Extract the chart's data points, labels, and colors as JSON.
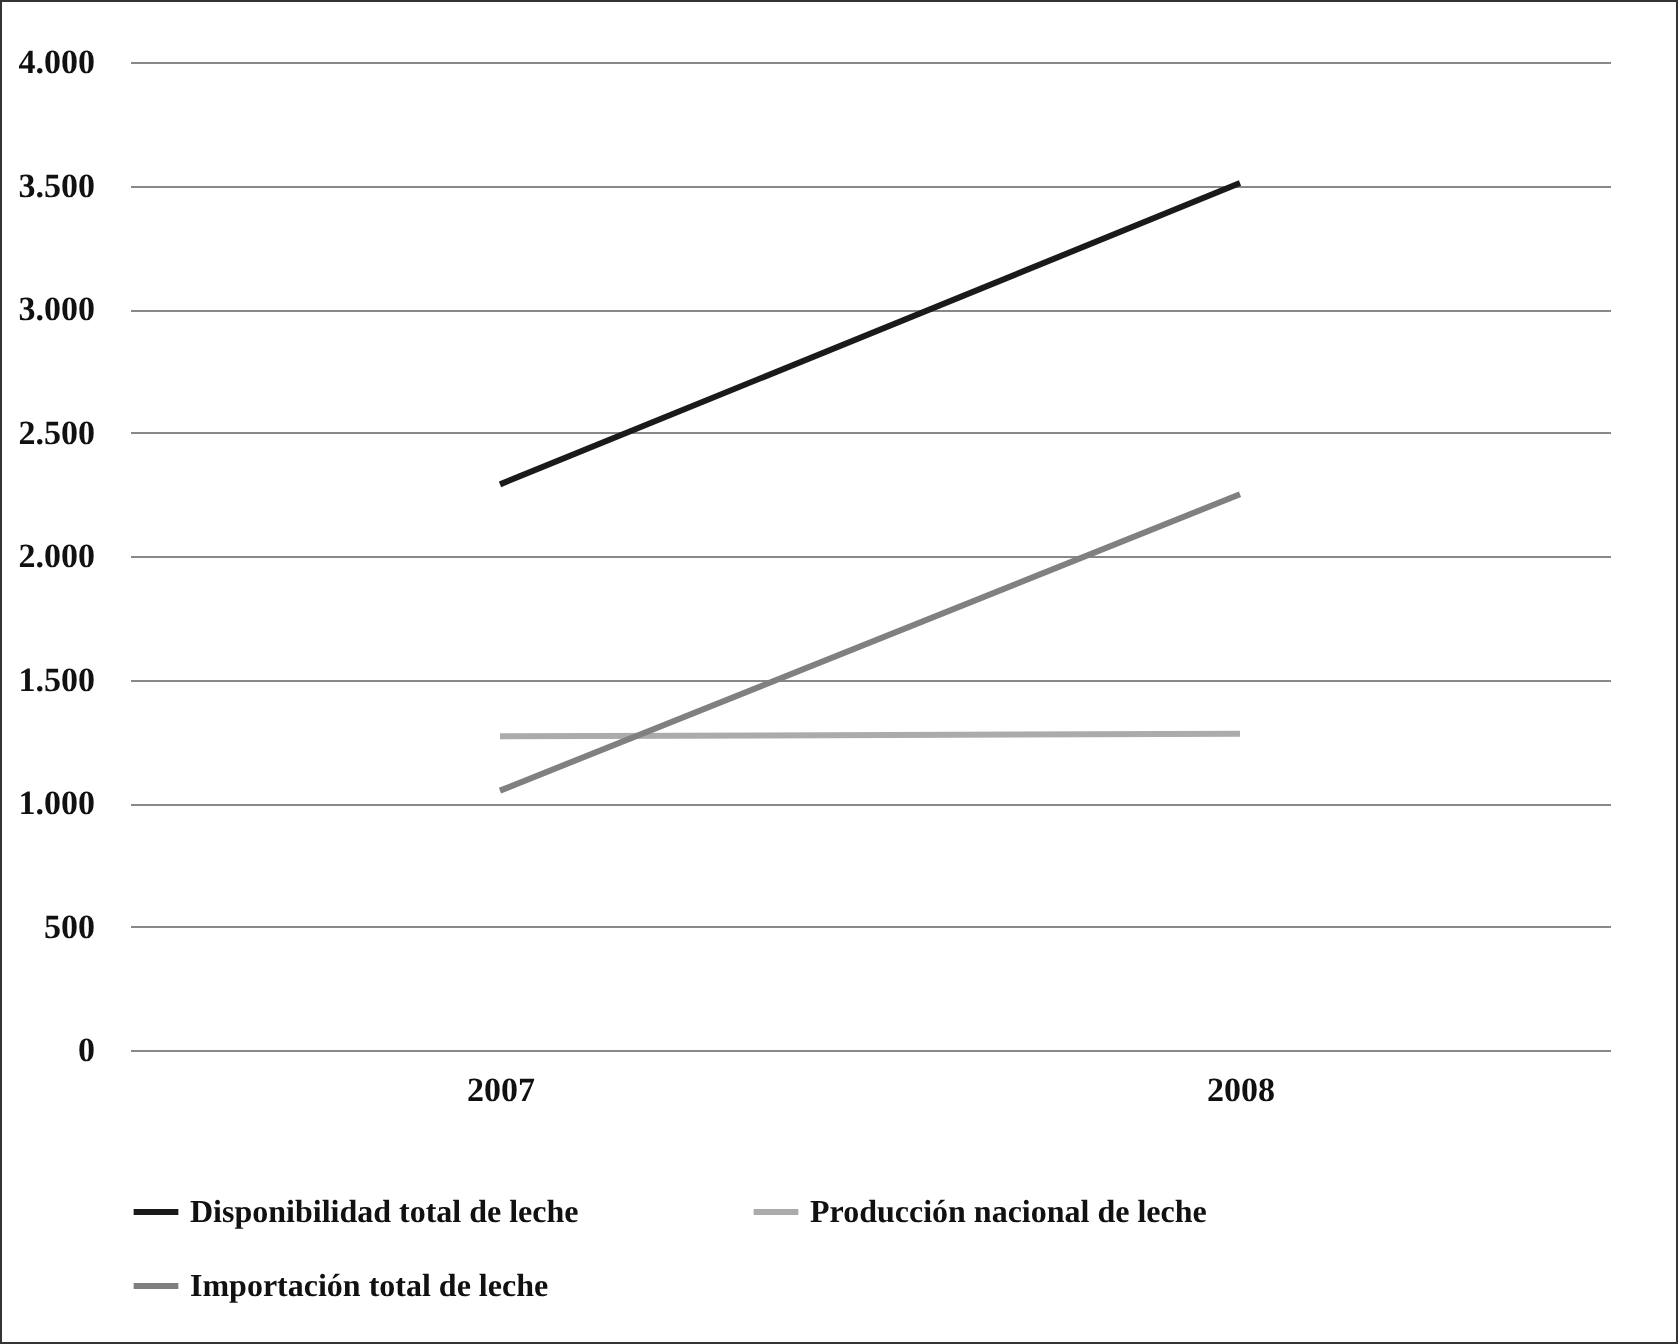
{
  "chart_data": {
    "type": "line",
    "categories": [
      "2007",
      "2008"
    ],
    "series": [
      {
        "name": "Disponibilidad total de leche",
        "color": "#1a1a1a",
        "values": [
          2290,
          3510
        ]
      },
      {
        "name": "Producción nacional de leche",
        "color": "#ababab",
        "values": [
          1270,
          1280
        ]
      },
      {
        "name": "Importación total de leche",
        "color": "#808080",
        "values": [
          1050,
          2250
        ]
      }
    ],
    "ylim": [
      0,
      4000
    ],
    "yticks": [
      {
        "value": 0,
        "label": "0"
      },
      {
        "value": 500,
        "label": "500"
      },
      {
        "value": 1000,
        "label": "1.000"
      },
      {
        "value": 1500,
        "label": "1.500"
      },
      {
        "value": 2000,
        "label": "2.000"
      },
      {
        "value": 2500,
        "label": "2.500"
      },
      {
        "value": 3000,
        "label": "3.000"
      },
      {
        "value": 3500,
        "label": "3.500"
      },
      {
        "value": 4000,
        "label": "4.000"
      }
    ],
    "grid": "y",
    "legend": "bottom"
  }
}
